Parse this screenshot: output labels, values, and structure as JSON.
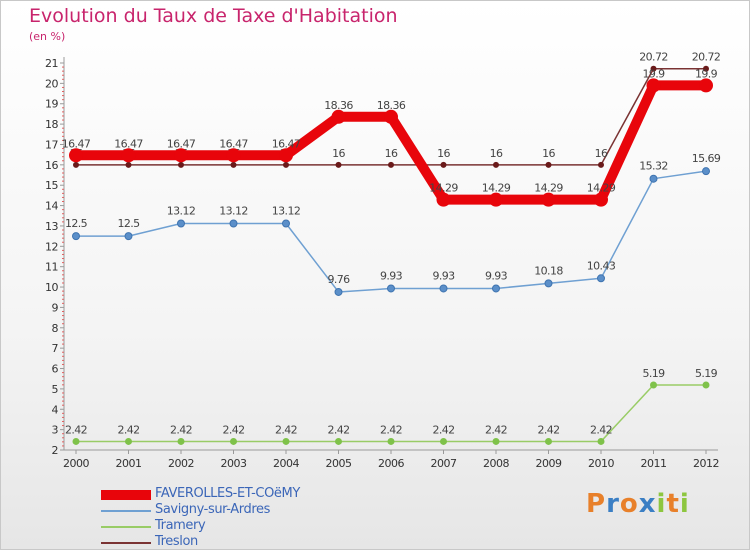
{
  "chart_data": {
    "type": "line",
    "title": "Evolution du Taux de Taxe d'Habitation",
    "subtitle": "(en %)",
    "xlabel": "",
    "ylabel": "",
    "categories": [
      "2000",
      "2001",
      "2002",
      "2003",
      "2004",
      "2005",
      "2006",
      "2007",
      "2008",
      "2009",
      "2010",
      "2011",
      "2012"
    ],
    "ylim": [
      2,
      21
    ],
    "yticks": [
      2,
      3,
      4,
      5,
      6,
      7,
      8,
      9,
      10,
      11,
      12,
      13,
      14,
      15,
      16,
      17,
      18,
      19,
      20,
      21
    ],
    "grid": false,
    "legend_position": "bottom-left",
    "series": [
      {
        "name": "FAVEROLLES-ET-COëMY",
        "color": "#e8050b",
        "values": [
          16.47,
          16.47,
          16.47,
          16.47,
          16.47,
          18.36,
          18.36,
          14.29,
          14.29,
          14.29,
          14.29,
          19.9,
          19.9
        ],
        "labels": [
          "16.47",
          "16.47",
          "16.47",
          "16.47",
          "16.47",
          "18.36",
          "18.36",
          "14.29",
          "14.29",
          "14.29",
          "14.29",
          "19.9",
          "19.9"
        ]
      },
      {
        "name": "Savigny-sur-Ardres",
        "color": "#6fa0d2",
        "values": [
          12.5,
          12.5,
          13.12,
          13.12,
          13.12,
          9.76,
          9.93,
          9.93,
          9.93,
          10.18,
          10.43,
          15.32,
          15.69
        ],
        "labels": [
          "12.5",
          "12.5",
          "13.12",
          "13.12",
          "13.12",
          "9.76",
          "9.93",
          "9.93",
          "9.93",
          "10.18",
          "10.43",
          "15.32",
          "15.69"
        ]
      },
      {
        "name": "Tramery",
        "color": "#99cc66",
        "values": [
          2.42,
          2.42,
          2.42,
          2.42,
          2.42,
          2.42,
          2.42,
          2.42,
          2.42,
          2.42,
          2.42,
          5.19,
          5.19
        ],
        "labels": [
          "2.42",
          "2.42",
          "2.42",
          "2.42",
          "2.42",
          "2.42",
          "2.42",
          "2.42",
          "2.42",
          "2.42",
          "2.42",
          "5.19",
          "5.19"
        ]
      },
      {
        "name": "Treslon",
        "color": "#7a3333",
        "values": [
          16,
          16,
          16,
          16,
          16,
          16,
          16,
          16,
          16,
          16,
          16,
          20.72,
          20.72
        ],
        "labels": [
          "16",
          "16",
          "16",
          "16",
          "16",
          "16",
          "16",
          "16",
          "16",
          "16",
          "16",
          "20.72",
          "20.72"
        ]
      }
    ]
  },
  "logo": {
    "text": "Proxiti",
    "letters": [
      "P",
      "r",
      "o",
      "x",
      "i",
      "t",
      "i"
    ],
    "colors": [
      "#e8802a",
      "#3b7fc4",
      "#e8802a",
      "#3b7fc4",
      "#8dc63f",
      "#e8802a",
      "#8dc63f"
    ]
  }
}
